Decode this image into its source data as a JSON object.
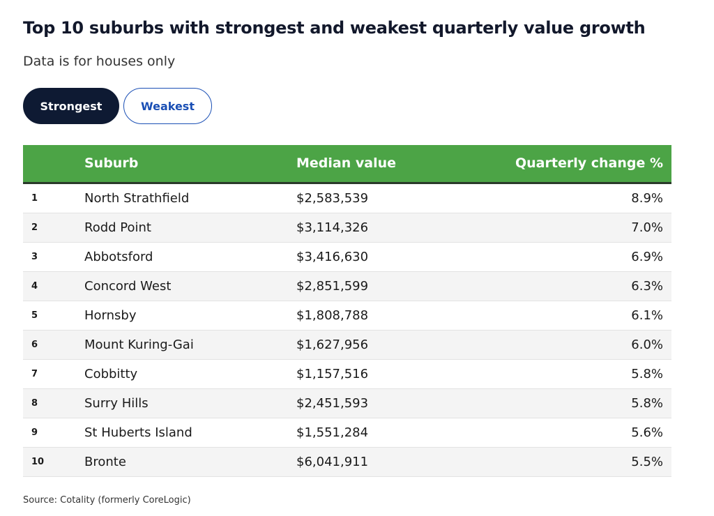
{
  "header": {
    "title": "Top 10 suburbs with strongest and weakest quarterly value growth",
    "subtitle": "Data is for houses only"
  },
  "tabs": [
    "Strongest",
    "Weakest"
  ],
  "table": {
    "columns": [
      "Suburb",
      "Median value",
      "Quarterly change %"
    ],
    "rows": [
      [
        "1",
        "North Strathfield",
        "$2,583,539",
        "8.9%"
      ],
      [
        "2",
        "Rodd Point",
        "$3,114,326",
        "7.0%"
      ],
      [
        "3",
        "Abbotsford",
        "$3,416,630",
        "6.9%"
      ],
      [
        "4",
        "Concord West",
        "$2,851,599",
        "6.3%"
      ],
      [
        "5",
        "Hornsby",
        "$1,808,788",
        "6.1%"
      ],
      [
        "6",
        "Mount Kuring-Gai",
        "$1,627,956",
        "6.0%"
      ],
      [
        "7",
        "Cobbitty",
        "$1,157,516",
        "5.8%"
      ],
      [
        "8",
        "Surry Hills",
        "$2,451,593",
        "5.8%"
      ],
      [
        "9",
        "St Huberts Island",
        "$1,551,284",
        "5.6%"
      ],
      [
        "10",
        "Bronte",
        "$6,041,911",
        "5.5%"
      ]
    ]
  },
  "source": "Source: Cotality (formerly CoreLogic)"
}
